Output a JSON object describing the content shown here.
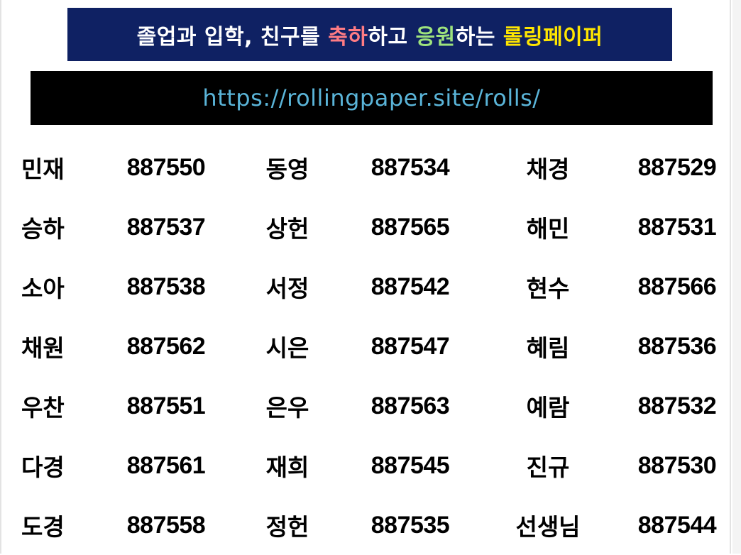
{
  "title": {
    "segments": [
      {
        "text": "졸업과 입학, 친구를 ",
        "color": "#ffffff"
      },
      {
        "text": "축하",
        "color": "#ff7c84"
      },
      {
        "text": "하고 ",
        "color": "#ffffff"
      },
      {
        "text": "응원",
        "color": "#9ee37d"
      },
      {
        "text": "하는 ",
        "color": "#ffffff"
      },
      {
        "text": "롤링페이퍼",
        "color": "#ffe600"
      }
    ],
    "background": "#0f2163"
  },
  "url": {
    "text": "https://rollingpaper.site/rolls/",
    "color": "#5ab4d8",
    "background": "#000000"
  },
  "rows": [
    [
      [
        "민재",
        "887550"
      ],
      [
        "동영",
        "887534"
      ],
      [
        "채경",
        "887529"
      ]
    ],
    [
      [
        "승하",
        "887537"
      ],
      [
        "상헌",
        "887565"
      ],
      [
        "해민",
        "887531"
      ]
    ],
    [
      [
        "소아",
        "887538"
      ],
      [
        "서정",
        "887542"
      ],
      [
        "현수",
        "887566"
      ]
    ],
    [
      [
        "채원",
        "887562"
      ],
      [
        "시은",
        "887547"
      ],
      [
        "혜림",
        "887536"
      ]
    ],
    [
      [
        "우찬",
        "887551"
      ],
      [
        "은우",
        "887563"
      ],
      [
        "예람",
        "887532"
      ]
    ],
    [
      [
        "다경",
        "887561"
      ],
      [
        "재희",
        "887545"
      ],
      [
        "진규",
        "887530"
      ]
    ],
    [
      [
        "도경",
        "887558"
      ],
      [
        "정헌",
        "887535"
      ],
      [
        "선생님",
        "887544"
      ]
    ]
  ]
}
